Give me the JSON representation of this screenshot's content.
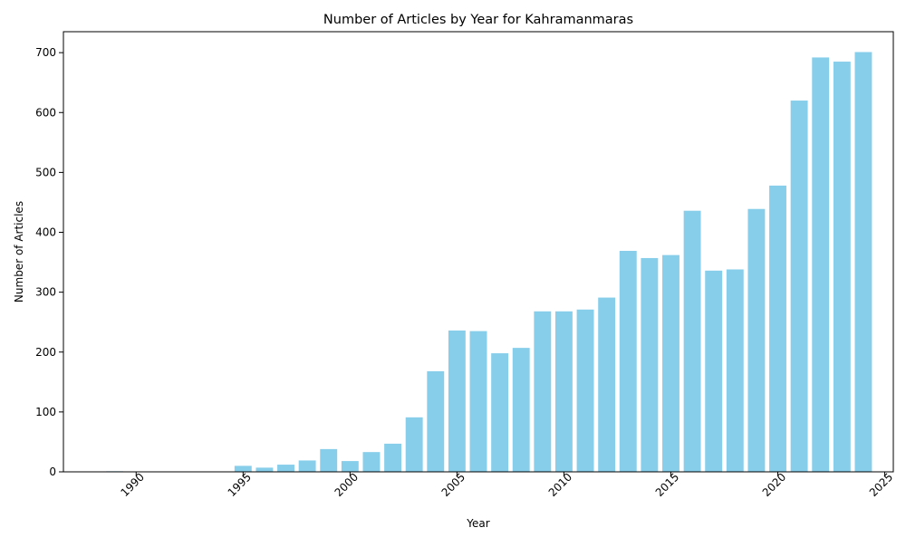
{
  "chart_data": {
    "type": "bar",
    "title": "Number of Articles by Year for Kahramanmaras",
    "xlabel": "Year",
    "ylabel": "Number of Articles",
    "x": [
      1989,
      1990,
      1991,
      1992,
      1993,
      1994,
      1995,
      1996,
      1997,
      1998,
      1999,
      2000,
      2001,
      2002,
      2003,
      2004,
      2005,
      2006,
      2007,
      2008,
      2009,
      2010,
      2011,
      2012,
      2013,
      2014,
      2015,
      2016,
      2017,
      2018,
      2019,
      2020,
      2021,
      2022,
      2023,
      2024
    ],
    "values": [
      1,
      0,
      0,
      0,
      0,
      0,
      10,
      7,
      12,
      19,
      38,
      18,
      33,
      47,
      91,
      168,
      236,
      235,
      198,
      207,
      268,
      268,
      271,
      291,
      369,
      357,
      362,
      436,
      336,
      338,
      439,
      478,
      620,
      692,
      685,
      701
    ],
    "xlim": [
      1986.6,
      2025.4
    ],
    "ylim": [
      0,
      735
    ],
    "xticks": [
      1990,
      1995,
      2000,
      2005,
      2010,
      2015,
      2020,
      2025
    ],
    "yticks": [
      0,
      100,
      200,
      300,
      400,
      500,
      600,
      700
    ],
    "bar_color": "#87CEEB",
    "grid": false,
    "legend": "none"
  }
}
